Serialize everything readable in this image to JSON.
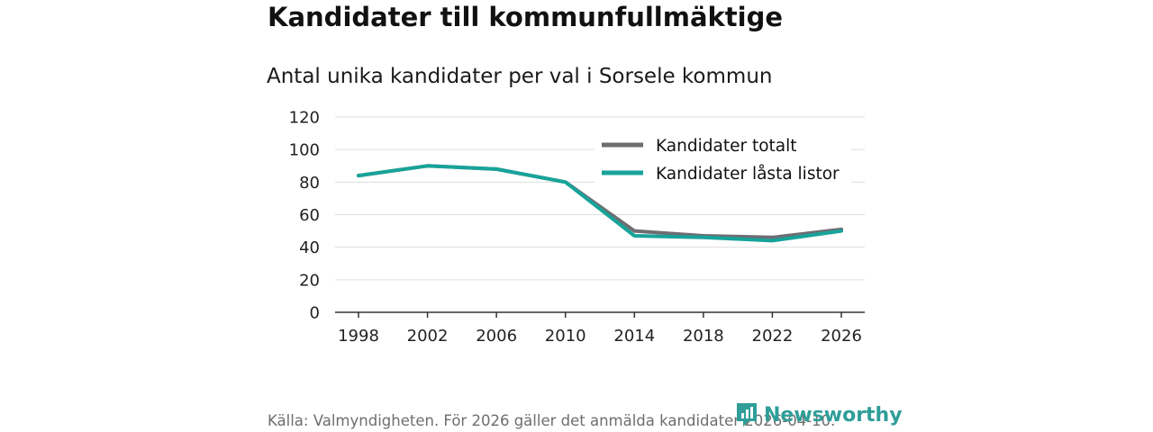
{
  "title": "Kandidater till kommunfullmäktige",
  "subtitle": "Antal unika kandidater per val i Sorsele kommun",
  "source": "Källa: Valmyndigheten. För 2026 gäller det anmälda kandidater 2026-04-10.",
  "brand": "Newsworthy",
  "colors": {
    "total": "#6d6d72",
    "locked": "#17a39a",
    "grid": "#dddddd",
    "axis": "#333333"
  },
  "chart_data": {
    "type": "line",
    "title": "Kandidater till kommunfullmäktige",
    "subtitle": "Antal unika kandidater per val i Sorsele kommun",
    "x": [
      1998,
      2002,
      2006,
      2010,
      2014,
      2018,
      2022,
      2026
    ],
    "x_labels": [
      "1998",
      "2002",
      "2006",
      "2010",
      "2014",
      "2018",
      "2022",
      "2026"
    ],
    "series": [
      {
        "name": "Kandidater totalt",
        "values": [
          84,
          90,
          88,
          80,
          50,
          47,
          46,
          51
        ]
      },
      {
        "name": "Kandidater låsta listor",
        "values": [
          84,
          90,
          88,
          80,
          47,
          46,
          44,
          50
        ]
      }
    ],
    "y_ticks": [
      "0",
      "20",
      "40",
      "60",
      "80",
      "100",
      "120"
    ],
    "ylim": [
      0,
      120
    ],
    "grid": true,
    "legend_position": "top-right",
    "xlabel": "",
    "ylabel": ""
  }
}
